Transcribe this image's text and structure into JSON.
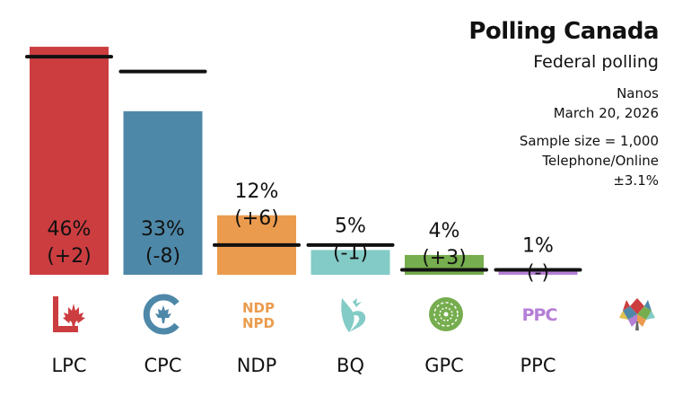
{
  "header": {
    "title": "Polling Canada",
    "subtitle": "Federal polling",
    "pollster": "Nanos",
    "date": "March 20, 2026",
    "sample": "Sample size = 1,000",
    "method": "Telephone/Online",
    "moe": "±3.1%"
  },
  "chart_data": {
    "type": "bar",
    "ylim": [
      0,
      50
    ],
    "categories": [
      "LPC",
      "CPC",
      "NDP",
      "BQ",
      "GPC",
      "PPC"
    ],
    "values": [
      46,
      33,
      12,
      5,
      4,
      1
    ],
    "value_labels": [
      "46%",
      "33%",
      "12%",
      "5%",
      "4%",
      "1%"
    ],
    "change_labels": [
      "(+2)",
      "(-8)",
      "(+6)",
      "(-1)",
      "(+3)",
      "(-)"
    ],
    "previous_values": [
      44,
      41,
      6,
      6,
      1,
      1
    ],
    "colors": [
      "#cc3d40",
      "#4e88a8",
      "#eb9b4d",
      "#83cbc6",
      "#76ad4e",
      "#b57fd6"
    ],
    "logo_icons": [
      "lpc-maple-leaf-icon",
      "cpc-logo-icon",
      "ndp-logo-icon",
      "bq-logo-icon",
      "gpc-flower-icon",
      "ppc-logo-icon"
    ],
    "logo_text": {
      "ndp_top": "NDP",
      "ndp_bottom": "NPD",
      "ppc": "PPC"
    }
  }
}
